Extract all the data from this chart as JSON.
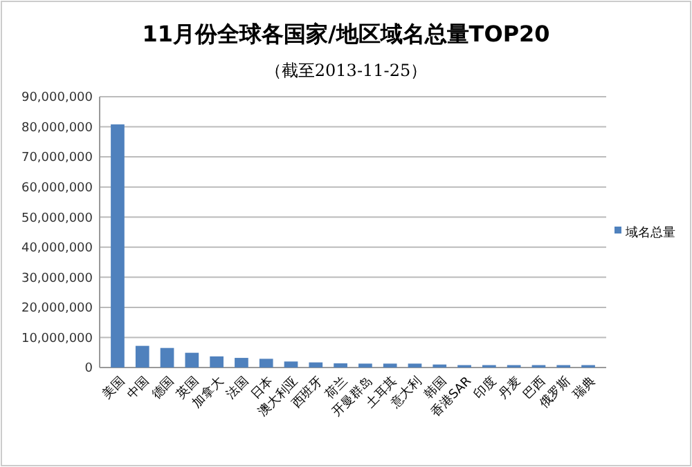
{
  "chart_data": {
    "type": "bar",
    "title": "11月份全球各国家/地区域名总量TOP20",
    "subtitle": "（截至2013-11-25）",
    "categories": [
      "美国",
      "中国",
      "德国",
      "英国",
      "加拿大",
      "法国",
      "日本",
      "澳大利亚",
      "西班牙",
      "荷兰",
      "开曼群岛",
      "土耳其",
      "意大利",
      "韩国",
      "香港SAR",
      "印度",
      "丹麦",
      "巴西",
      "俄罗斯",
      "瑞典"
    ],
    "series": [
      {
        "name": "域名总量",
        "color": "#4f81bd",
        "values": [
          80800000,
          7200000,
          6500000,
          4900000,
          3700000,
          3200000,
          2900000,
          2000000,
          1700000,
          1400000,
          1300000,
          1300000,
          1300000,
          1000000,
          800000,
          800000,
          800000,
          800000,
          800000,
          800000
        ]
      }
    ],
    "ylim": [
      0,
      90000000
    ],
    "yticks": [
      {
        "value": 0,
        "label": "0"
      },
      {
        "value": 10000000,
        "label": "10,000,000"
      },
      {
        "value": 20000000,
        "label": "20,000,000"
      },
      {
        "value": 30000000,
        "label": "30,000,000"
      },
      {
        "value": 40000000,
        "label": "40,000,000"
      },
      {
        "value": 50000000,
        "label": "50,000,000"
      },
      {
        "value": 60000000,
        "label": "60,000,000"
      },
      {
        "value": 70000000,
        "label": "70,000,000"
      },
      {
        "value": 80000000,
        "label": "80,000,000"
      },
      {
        "value": 90000000,
        "label": "90,000,000"
      }
    ],
    "grid": "y",
    "legend": "right"
  }
}
